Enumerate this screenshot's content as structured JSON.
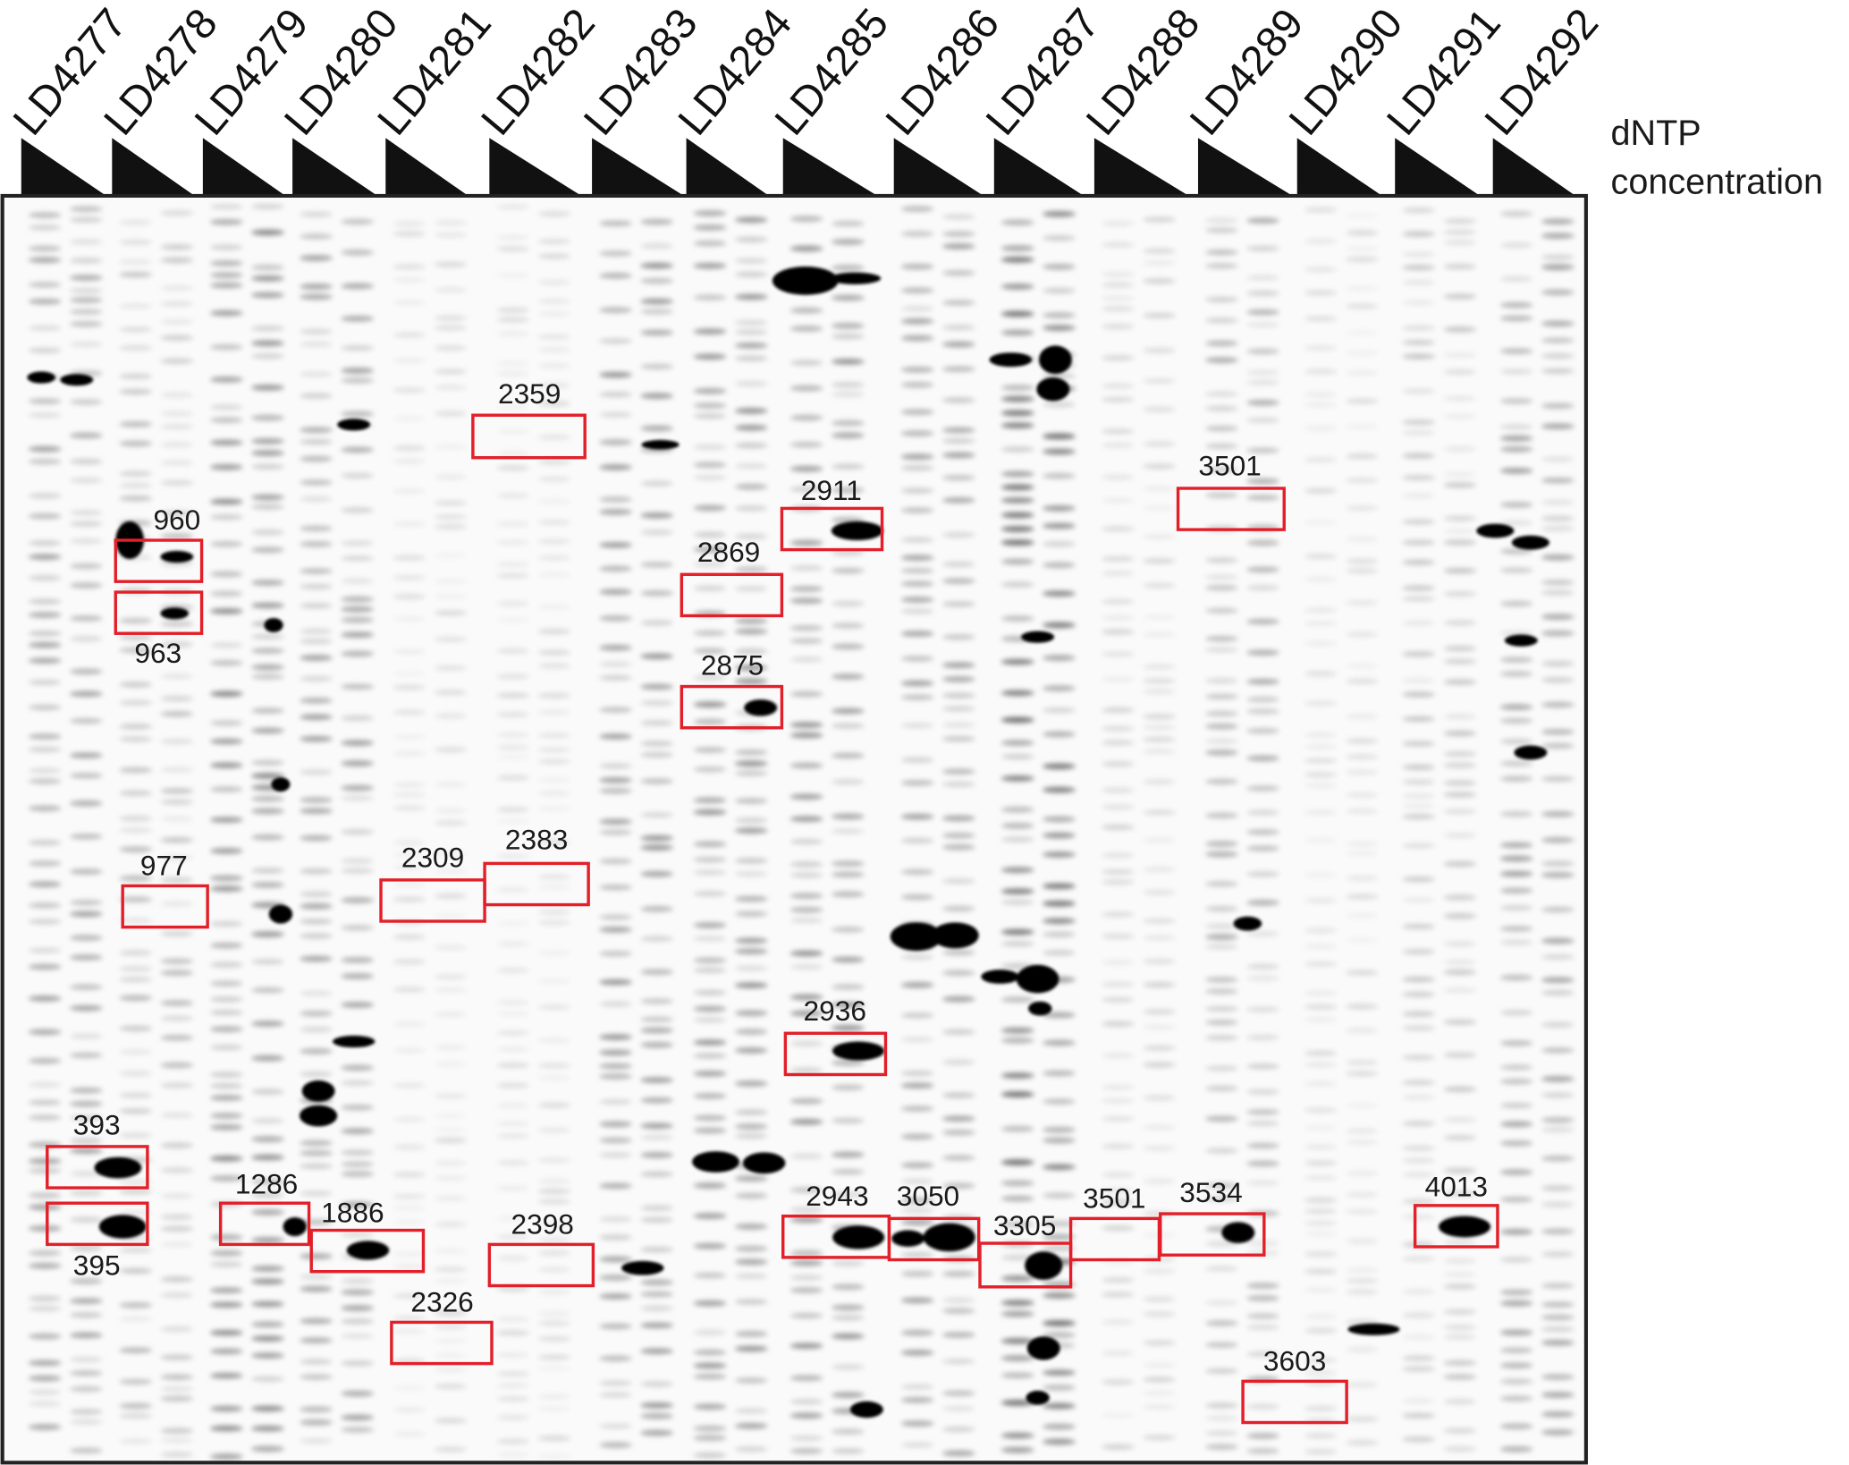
{
  "figure": {
    "lanes": [
      "LD4277",
      "LD4278",
      "LD4279",
      "LD4280",
      "LD4281",
      "LD4282",
      "LD4283",
      "LD4284",
      "LD4285",
      "LD4286",
      "LD4287",
      "LD4288",
      "LD4289",
      "LD4290",
      "LD4291",
      "LD4292"
    ],
    "gradient_label_line1": "dNTP",
    "gradient_label_line2": "concentration",
    "annotations": [
      "2359",
      "960",
      "963",
      "2869",
      "2875",
      "2911",
      "3501",
      "977",
      "2309",
      "2383",
      "2936",
      "393",
      "395",
      "1286",
      "1886",
      "2398",
      "2326",
      "2943",
      "3050",
      "3305",
      "3501",
      "3534",
      "3603",
      "4013"
    ],
    "colors": {
      "box": "#e3202a",
      "band": "#000000",
      "gel_background": "#fafafa",
      "wedge": "#111111"
    }
  }
}
